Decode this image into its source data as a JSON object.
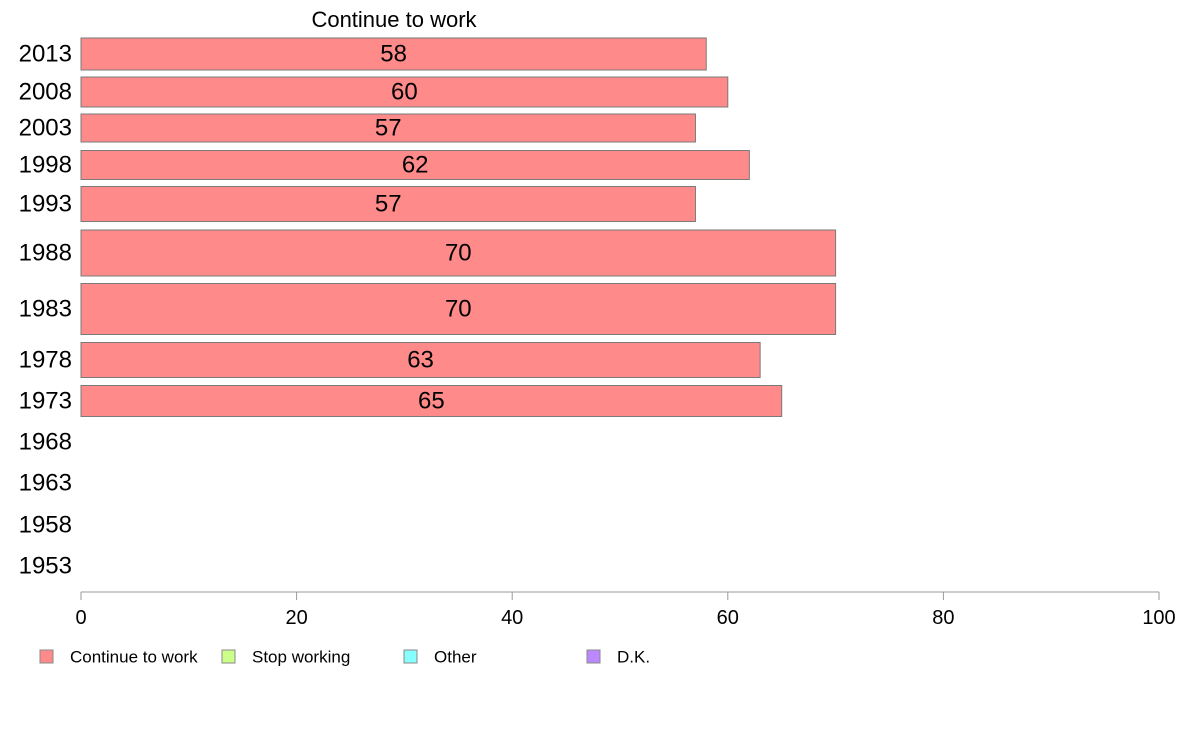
{
  "chart_data": {
    "type": "bar",
    "orientation": "horizontal",
    "title": "Continue to work",
    "categories": [
      "2013",
      "2008",
      "2003",
      "1998",
      "1993",
      "1988",
      "1983",
      "1978",
      "1973",
      "1968",
      "1963",
      "1958",
      "1953"
    ],
    "series": [
      {
        "name": "Continue to work",
        "color": "#ff8a8a",
        "values": [
          58,
          60,
          57,
          62,
          57,
          70,
          70,
          63,
          65,
          null,
          null,
          null,
          null
        ],
        "labels": [
          "58",
          "60",
          "57",
          "62",
          "57",
          "70",
          "70",
          "63",
          "65",
          "",
          "",
          "",
          ""
        ]
      }
    ],
    "xlim": [
      0,
      100
    ],
    "xticks": [
      0,
      20,
      40,
      60,
      80,
      100
    ],
    "xtick_labels": [
      "0",
      "20",
      "40",
      "60",
      "80",
      "100"
    ],
    "grid": false,
    "legend_position": "bottom-left",
    "legend": [
      {
        "label": "Continue to work",
        "color": "#ff8a8a"
      },
      {
        "label": "Stop working",
        "color": "#ccff88"
      },
      {
        "label": "Other",
        "color": "#88ffff"
      },
      {
        "label": "D.K.",
        "color": "#bb88ff"
      }
    ]
  }
}
